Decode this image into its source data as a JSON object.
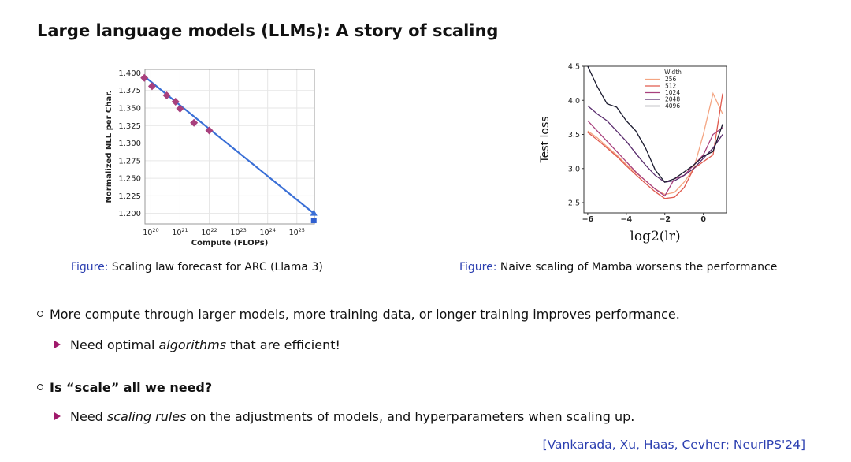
{
  "slide": {
    "title": "Large language models (LLMs): A story of scaling",
    "caption_left": {
      "label": "Figure:",
      "text": "Scaling law forecast for ARC (Llama 3)"
    },
    "caption_right": {
      "label": "Figure:",
      "text": "Naive scaling of Mamba worsens the performance"
    },
    "bullet1": "More compute through larger models, more training data, or longer training improves performance.",
    "sub1": {
      "pre": "Need optimal ",
      "em": "algorithms",
      "post": " that are efficient!"
    },
    "bullet2": "Is “scale” all we need?",
    "sub2": {
      "pre": "Need ",
      "em": "scaling rules",
      "post": " on the adjustments of models, and hyperparameters when scaling up."
    },
    "reference": "[Vankarada, Xu, Haas, Cevher; NeurIPS'24]"
  },
  "chart_data": [
    {
      "type": "scatter",
      "xlabel": "Compute (FLOPs)",
      "ylabel": "Normalized NLL per Char.",
      "x_scale": "log",
      "x_ticks": [
        "10^20",
        "10^21",
        "10^22",
        "10^23",
        "10^24",
        "10^25"
      ],
      "x_tick_values": [
        1e+20,
        1e+21,
        1e+22,
        1e+23,
        1e+24,
        1e+25
      ],
      "y_ticks": [
        "1.400",
        "1.375",
        "1.350",
        "1.325",
        "1.300",
        "1.275",
        "1.250",
        "1.225",
        "1.200"
      ],
      "y_tick_values": [
        1.4,
        1.375,
        1.35,
        1.325,
        1.3,
        1.275,
        1.25,
        1.225,
        1.2
      ],
      "xlim_log10": [
        19.8,
        25.6
      ],
      "ylim": [
        1.185,
        1.405
      ],
      "grid": true,
      "points": [
        {
          "x": 6e+19,
          "y": 1.393
        },
        {
          "x": 1.1e+20,
          "y": 1.381
        },
        {
          "x": 3.5e+20,
          "y": 1.368
        },
        {
          "x": 7e+20,
          "y": 1.359
        },
        {
          "x": 1e+21,
          "y": 1.349
        },
        {
          "x": 3e+21,
          "y": 1.329
        },
        {
          "x": 1e+22,
          "y": 1.318
        }
      ],
      "fit_line": [
        {
          "x": 6e+19,
          "y": 1.395
        },
        {
          "x": 3.8e+25,
          "y": 1.2
        }
      ],
      "forecast_point": {
        "x": 3.8e+25,
        "y": 1.2
      },
      "actual_point": {
        "x": 3.8e+25,
        "y": 1.19
      },
      "colors": {
        "points": "#a8407d",
        "line": "#3a6fd6",
        "actual": "#2f5fd0"
      }
    },
    {
      "type": "line",
      "xlabel": "log2(lr)",
      "ylabel": "Test loss",
      "xlim": [
        -6.2,
        1.2
      ],
      "ylim": [
        2.35,
        4.5
      ],
      "x_ticks": [
        -6,
        -4,
        -2,
        0
      ],
      "x_tick_labels": [
        "−6",
        "−4",
        "−2",
        "0"
      ],
      "y_ticks": [
        2.5,
        3.0,
        3.5,
        4.0,
        4.5
      ],
      "y_tick_labels": [
        "2.5",
        "3.0",
        "3.5",
        "4.0",
        "4.5"
      ],
      "legend": {
        "title": "Width",
        "position": "top-right"
      },
      "series": [
        {
          "name": "256",
          "color": "#f4a582",
          "x": [
            -6,
            -5.5,
            -5,
            -4.5,
            -4,
            -3.5,
            -3,
            -2.5,
            -2,
            -1.5,
            -1,
            -0.5,
            0,
            0.5,
            1
          ],
          "y": [
            3.55,
            3.45,
            3.32,
            3.2,
            3.06,
            2.94,
            2.82,
            2.7,
            2.62,
            2.65,
            2.8,
            3.0,
            3.5,
            4.1,
            3.8
          ]
        },
        {
          "name": "512",
          "color": "#e05a4e",
          "x": [
            -6,
            -5.5,
            -5,
            -4.5,
            -4,
            -3.5,
            -3,
            -2.5,
            -2,
            -1.5,
            -1,
            -0.5,
            0,
            0.5,
            1
          ],
          "y": [
            3.53,
            3.42,
            3.3,
            3.18,
            3.04,
            2.91,
            2.78,
            2.66,
            2.56,
            2.58,
            2.72,
            3.0,
            3.1,
            3.2,
            4.1
          ]
        },
        {
          "name": "1024",
          "color": "#a8407d",
          "x": [
            -6,
            -5.5,
            -5,
            -4.5,
            -4,
            -3.5,
            -3,
            -2.5,
            -2,
            -1.5,
            -1,
            -0.5,
            0,
            0.5,
            1
          ],
          "y": [
            3.7,
            3.55,
            3.4,
            3.25,
            3.1,
            2.95,
            2.82,
            2.7,
            2.6,
            2.85,
            2.9,
            3.05,
            3.2,
            3.5,
            3.6
          ]
        },
        {
          "name": "2048",
          "color": "#5a2d6e",
          "x": [
            -6,
            -5.5,
            -5,
            -4.5,
            -4,
            -3.5,
            -3,
            -2.5,
            -2,
            -1.5,
            -1,
            -0.5,
            0,
            0.5,
            1
          ],
          "y": [
            3.92,
            3.8,
            3.7,
            3.55,
            3.4,
            3.22,
            3.05,
            2.9,
            2.8,
            2.82,
            2.9,
            3.0,
            3.15,
            3.3,
            3.5
          ]
        },
        {
          "name": "4096",
          "color": "#1a1a2e",
          "x": [
            -6,
            -5.5,
            -5,
            -4.5,
            -4,
            -3.5,
            -3,
            -2.5,
            -2,
            -1.5,
            -1,
            -0.5,
            0,
            0.5,
            1
          ],
          "y": [
            4.5,
            4.2,
            3.95,
            3.9,
            3.7,
            3.55,
            3.3,
            2.98,
            2.8,
            2.85,
            2.95,
            3.05,
            3.18,
            3.25,
            3.65
          ]
        }
      ]
    }
  ]
}
